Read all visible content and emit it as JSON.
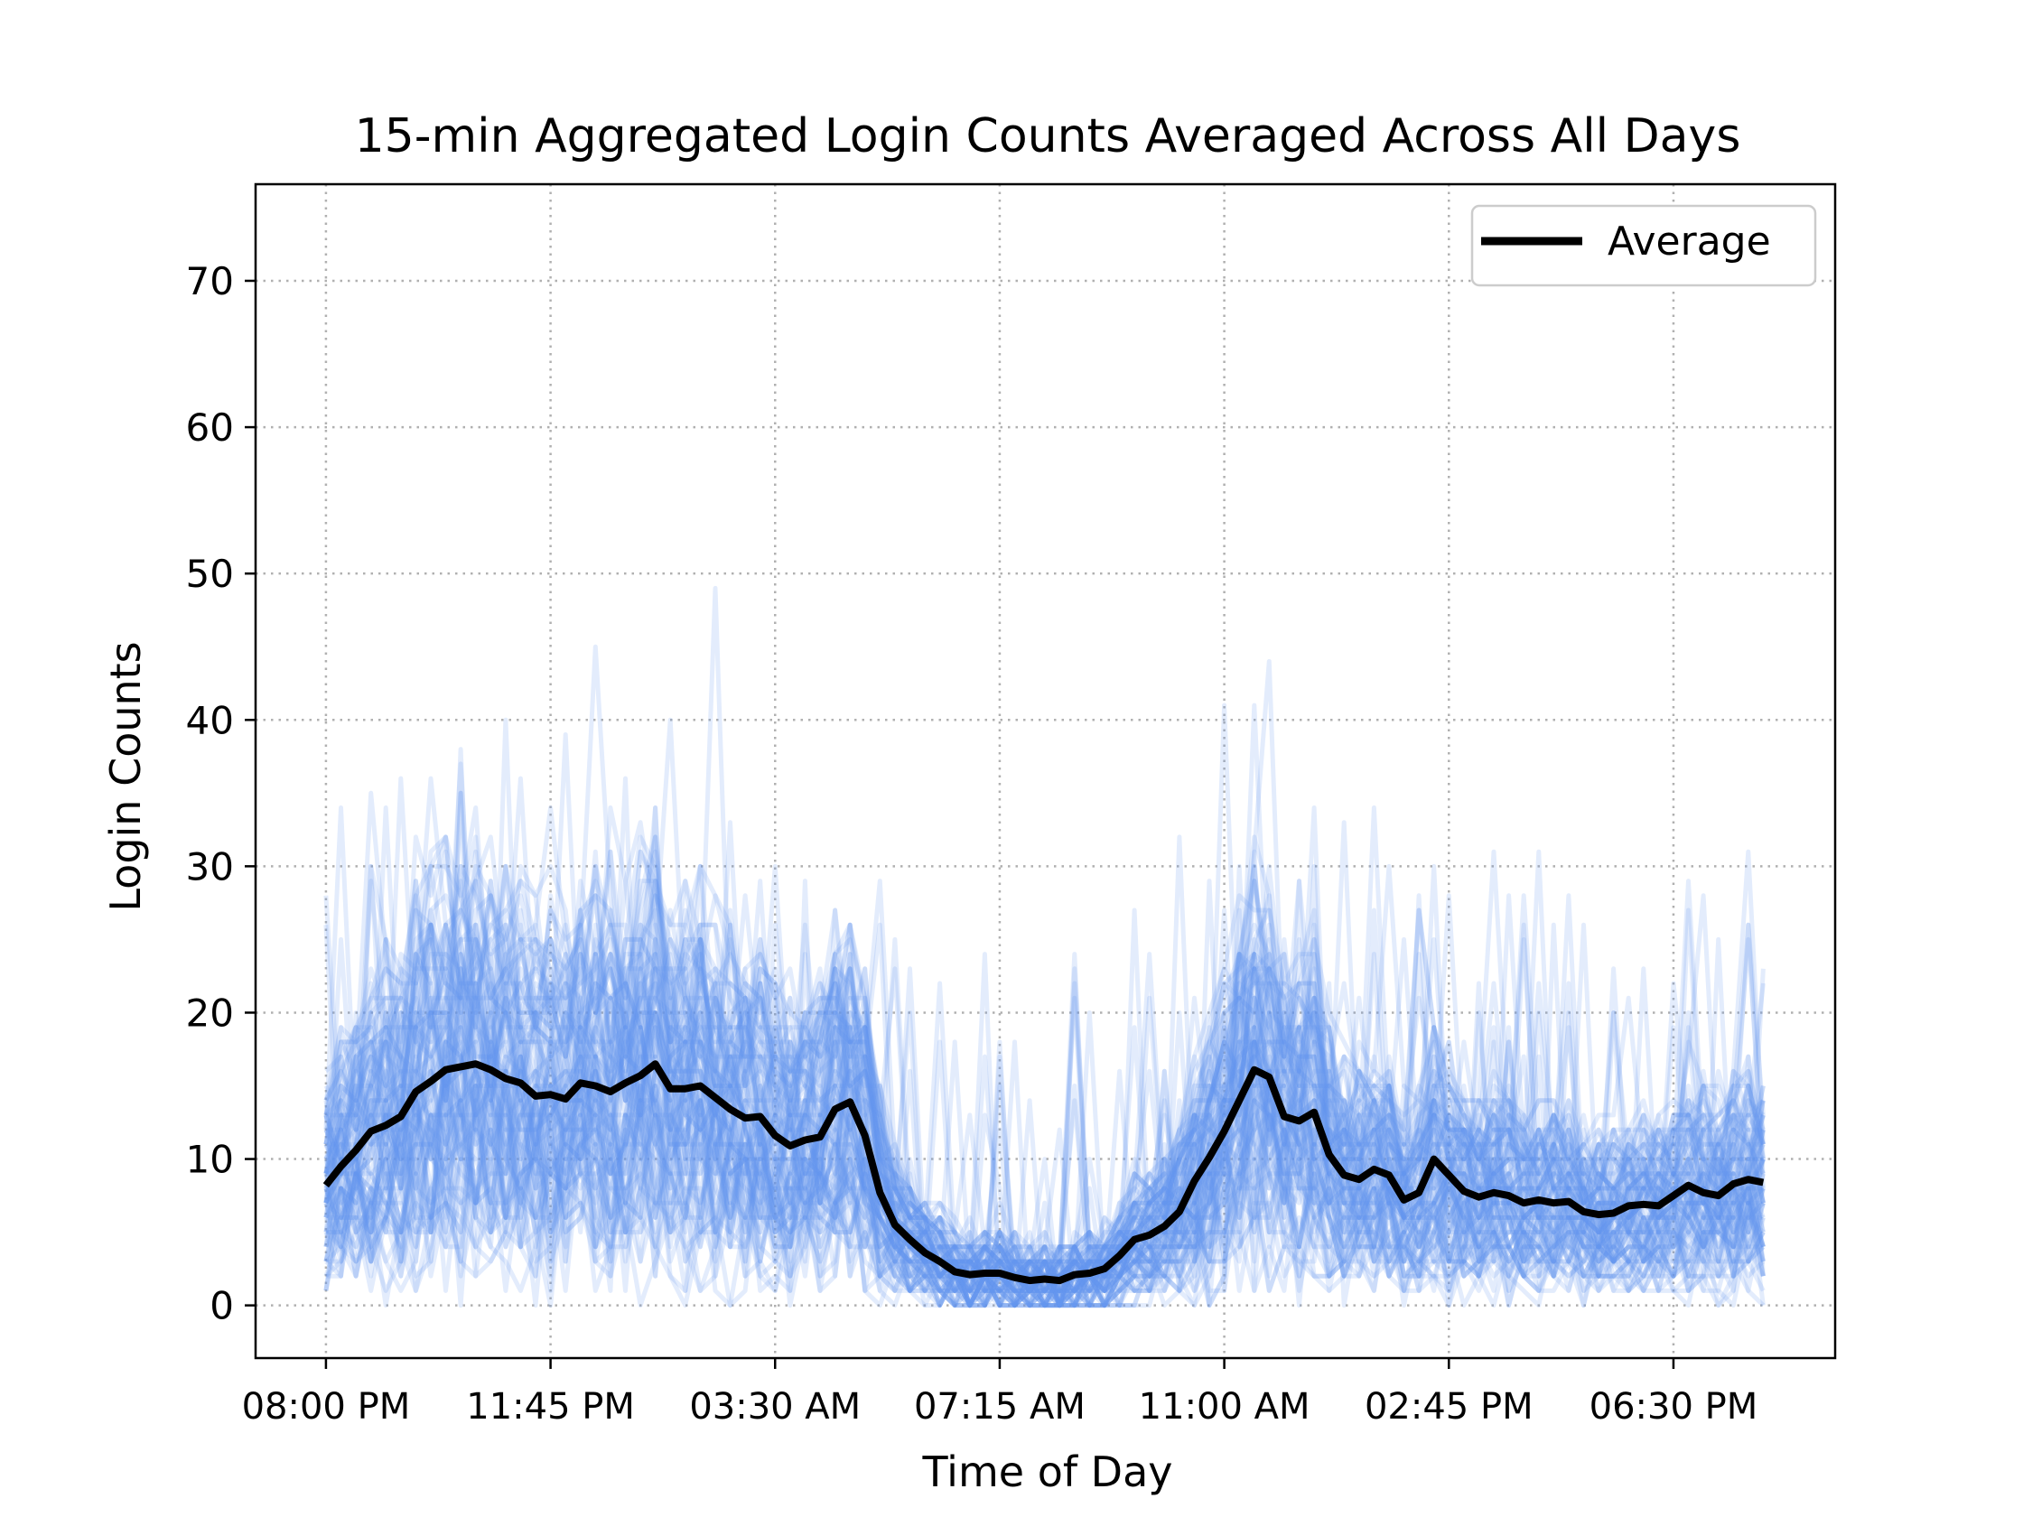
{
  "chart_data": {
    "type": "line",
    "title": "15-min Aggregated Login Counts Averaged Across All Days",
    "xlabel": "Time of Day",
    "ylabel": "Login Counts",
    "x_ticks": [
      "08:00 PM",
      "11:45 PM",
      "03:30 AM",
      "07:15 AM",
      "11:00 AM",
      "02:45 PM",
      "06:30 PM"
    ],
    "x_tick_index": [
      0,
      15,
      30,
      45,
      60,
      75,
      90
    ],
    "y_ticks": [
      0,
      10,
      20,
      30,
      40,
      50,
      60,
      70
    ],
    "xlim": [
      -4.7,
      100.8
    ],
    "ylim": [
      -3.6,
      76.6
    ],
    "grid": true,
    "legend": {
      "position": "top-right",
      "entries": [
        "Average"
      ]
    },
    "colors": {
      "daily": "#6495ed",
      "average": "#000000"
    },
    "series": [
      {
        "name": "Average",
        "x_start": "08:00 PM",
        "interval_minutes": 15,
        "values": [
          8.2,
          9.5,
          10.6,
          11.9,
          12.3,
          12.9,
          14.6,
          15.3,
          16.1,
          16.3,
          16.5,
          16.1,
          15.5,
          15.2,
          14.3,
          14.4,
          14.1,
          15.2,
          15.0,
          14.6,
          15.2,
          15.7,
          16.5,
          14.8,
          14.8,
          15.0,
          14.2,
          13.4,
          12.8,
          12.9,
          11.6,
          10.9,
          11.3,
          11.5,
          13.4,
          13.9,
          11.6,
          7.7,
          5.5,
          4.5,
          3.6,
          3.0,
          2.3,
          2.1,
          2.2,
          2.2,
          1.9,
          1.7,
          1.8,
          1.7,
          2.1,
          2.2,
          2.5,
          3.4,
          4.5,
          4.8,
          5.4,
          6.4,
          8.5,
          10.1,
          11.9,
          14.0,
          16.1,
          15.6,
          12.9,
          12.6,
          13.2,
          10.3,
          8.9,
          8.6,
          9.3,
          8.9,
          7.2,
          7.7,
          10.0,
          8.9,
          7.8,
          7.4,
          7.7,
          7.5,
          7.0,
          7.2,
          7.0,
          7.1,
          6.4,
          6.2,
          6.3,
          6.8,
          6.9,
          6.8,
          7.5,
          8.2,
          7.7,
          7.5,
          8.3,
          8.6,
          8.4
        ]
      }
    ]
  }
}
